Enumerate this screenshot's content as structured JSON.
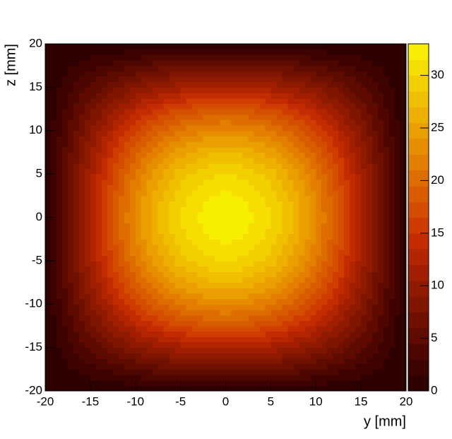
{
  "chart_data": {
    "type": "contour",
    "xlabel": "y [mm]",
    "ylabel": "z [mm]",
    "x": [
      -20,
      -17.5,
      -15,
      -12.5,
      -10,
      -7.5,
      -5,
      -2.5,
      0,
      2.5,
      5,
      7.5,
      10,
      12.5,
      15,
      17.5,
      20
    ],
    "y": [
      -20,
      -17.5,
      -15,
      -12.5,
      -10,
      -7.5,
      -5,
      -2.5,
      0,
      2.5,
      5,
      7.5,
      10,
      12.5,
      15,
      17.5,
      20
    ],
    "z": [
      [
        0,
        0,
        0,
        0,
        0,
        0,
        0,
        0,
        0,
        0,
        0,
        0,
        0,
        0,
        0,
        0,
        0
      ],
      [
        0,
        1.2,
        2.4,
        3.5,
        4.5,
        5.3,
        5.9,
        6.2,
        6.3,
        6.2,
        5.9,
        5.3,
        4.5,
        3.5,
        2.4,
        1.2,
        0
      ],
      [
        0,
        2.4,
        4.8,
        6.9,
        8.8,
        10.3,
        11.5,
        12.2,
        12.4,
        12.2,
        11.5,
        10.3,
        8.8,
        6.9,
        4.8,
        2.4,
        0
      ],
      [
        0,
        3.5,
        6.9,
        10.0,
        12.8,
        15.0,
        16.7,
        17.7,
        18.0,
        17.7,
        16.7,
        15.0,
        12.8,
        10.0,
        6.9,
        3.5,
        0
      ],
      [
        0,
        4.5,
        8.8,
        12.8,
        16.3,
        19.1,
        21.2,
        22.5,
        23.0,
        22.5,
        21.2,
        19.1,
        16.3,
        12.8,
        8.8,
        4.5,
        0
      ],
      [
        0,
        5.3,
        10.3,
        15.0,
        19.1,
        22.4,
        24.9,
        26.5,
        27.0,
        26.5,
        24.9,
        22.4,
        19.1,
        15.0,
        10.3,
        5.3,
        0
      ],
      [
        0,
        5.9,
        11.5,
        16.7,
        21.2,
        24.9,
        27.7,
        29.4,
        30.0,
        29.4,
        27.7,
        24.9,
        21.2,
        16.7,
        11.5,
        5.9,
        0
      ],
      [
        0,
        6.2,
        12.2,
        17.7,
        22.5,
        26.5,
        29.4,
        31.3,
        31.9,
        31.3,
        29.4,
        26.5,
        22.5,
        17.7,
        12.2,
        6.2,
        0
      ],
      [
        0,
        6.3,
        12.4,
        18.0,
        23.0,
        27.0,
        30.0,
        31.9,
        32.5,
        31.9,
        30.0,
        27.0,
        23.0,
        18.0,
        12.4,
        6.3,
        0
      ],
      [
        0,
        6.2,
        12.2,
        17.7,
        22.5,
        26.5,
        29.4,
        31.3,
        31.9,
        31.3,
        29.4,
        26.5,
        22.5,
        17.7,
        12.2,
        6.2,
        0
      ],
      [
        0,
        5.9,
        11.5,
        16.7,
        21.2,
        24.9,
        27.7,
        29.4,
        30.0,
        29.4,
        27.7,
        24.9,
        21.2,
        16.7,
        11.5,
        5.9,
        0
      ],
      [
        0,
        5.3,
        10.3,
        15.0,
        19.1,
        22.4,
        24.9,
        26.5,
        27.0,
        26.5,
        24.9,
        22.4,
        19.1,
        15.0,
        10.3,
        5.3,
        0
      ],
      [
        0,
        4.5,
        8.8,
        12.8,
        16.3,
        19.1,
        21.2,
        22.5,
        23.0,
        22.5,
        21.2,
        19.1,
        16.3,
        12.8,
        8.8,
        4.5,
        0
      ],
      [
        0,
        3.5,
        6.9,
        10.0,
        12.8,
        15.0,
        16.7,
        17.7,
        18.0,
        17.7,
        16.7,
        15.0,
        12.8,
        10.0,
        6.9,
        3.5,
        0
      ],
      [
        0,
        2.4,
        4.8,
        6.9,
        8.8,
        10.3,
        11.5,
        12.2,
        12.4,
        12.2,
        11.5,
        10.3,
        8.8,
        6.9,
        4.8,
        2.4,
        0
      ],
      [
        0,
        1.2,
        2.4,
        3.5,
        4.5,
        5.3,
        5.9,
        6.2,
        6.3,
        6.2,
        5.9,
        5.3,
        4.5,
        3.5,
        2.4,
        1.2,
        0
      ],
      [
        0,
        0,
        0,
        0,
        0,
        0,
        0,
        0,
        0,
        0,
        0,
        0,
        0,
        0,
        0,
        0,
        0
      ]
    ],
    "xlim": [
      -20,
      20
    ],
    "ylim": [
      -20,
      20
    ],
    "xticks": [
      -20,
      -15,
      -10,
      -5,
      0,
      5,
      10,
      15,
      20
    ],
    "yticks": [
      -20,
      -15,
      -10,
      -5,
      0,
      5,
      10,
      15,
      20
    ],
    "zlim": [
      0,
      33
    ],
    "zticks": [
      0,
      5,
      10,
      15,
      20,
      25,
      30
    ],
    "palette": [
      "#2e0000",
      "#3e0300",
      "#4e0700",
      "#5f0b00",
      "#6f1000",
      "#801500",
      "#901a00",
      "#a11f00",
      "#b32500",
      "#c42b00",
      "#cf3c00",
      "#d44d00",
      "#d95d00",
      "#de6d00",
      "#e37e00",
      "#e78e00",
      "#ea9e00",
      "#edaf00",
      "#f0bf00",
      "#f3cf00",
      "#f6df00",
      "#f8ee00"
    ]
  }
}
